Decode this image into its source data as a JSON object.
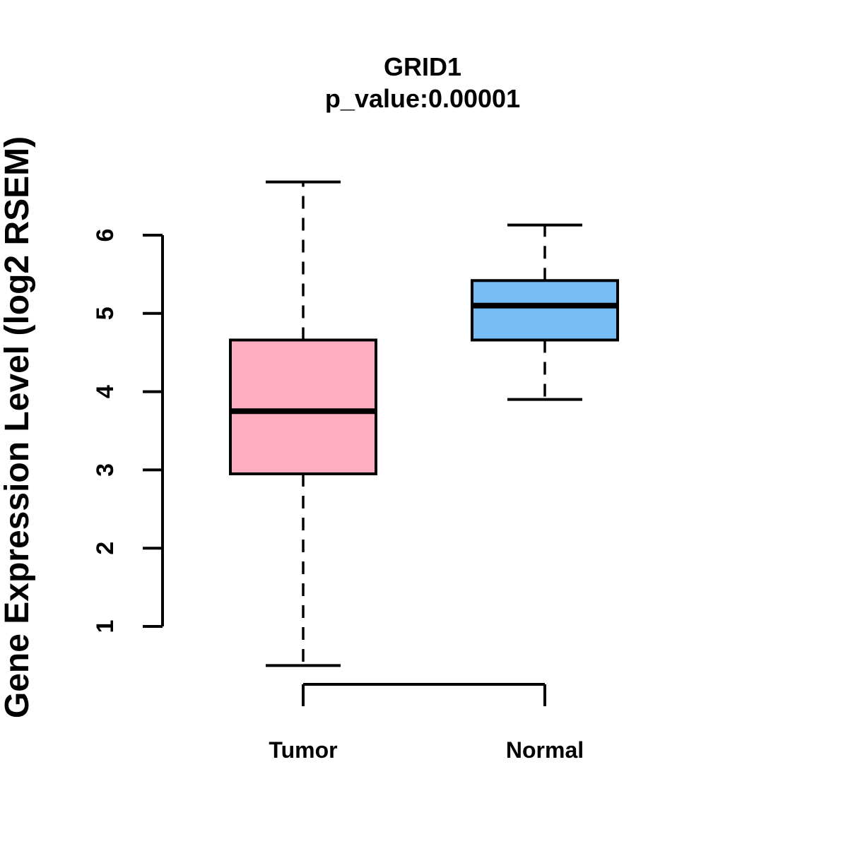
{
  "chart_data": {
    "type": "boxplot",
    "title": "GRID1",
    "subtitle": "p_value:0.00001",
    "ylabel": "Gene Expression Level (log2 RSEM)",
    "categories": [
      "Tumor",
      "Normal"
    ],
    "series": [
      {
        "name": "Tumor",
        "color": "#FFAEC1",
        "whisker_low": 0.5,
        "q1": 2.95,
        "median": 3.75,
        "q3": 4.66,
        "whisker_high": 6.68
      },
      {
        "name": "Normal",
        "color": "#77BEF6",
        "whisker_low": 3.9,
        "q1": 4.66,
        "median": 5.1,
        "q3": 5.42,
        "whisker_high": 6.13
      }
    ],
    "y_ticks": [
      1,
      2,
      3,
      4,
      5,
      6
    ],
    "ylim": [
      0.4,
      6.8
    ],
    "grid": false,
    "legend": "none",
    "stroke_color": "#000000",
    "background_color": "#FFFFFF"
  }
}
